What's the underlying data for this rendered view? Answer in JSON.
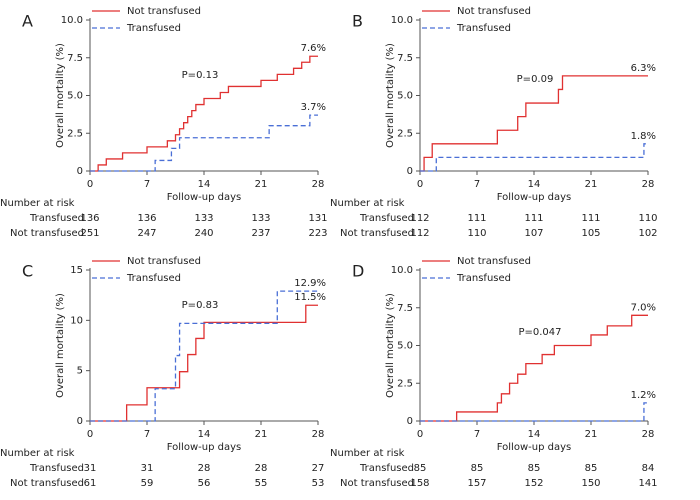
{
  "chart_data": [
    {
      "type": "step",
      "panel": "A",
      "y_label": "Overall mortality (%)",
      "x_label": "Follow-up days",
      "annotation": "P=0.13",
      "xlim": [
        0,
        28
      ],
      "xticks": [
        0,
        7,
        14,
        21,
        28
      ],
      "ylim": [
        0,
        10
      ],
      "yticks": [
        0,
        2.5,
        {
          "value": 5,
          "label": "5.0"
        },
        7.5,
        {
          "value": 10,
          "label": "10.0"
        }
      ],
      "series": [
        {
          "name": "Not transfused",
          "color": "#e03131",
          "dashed": false,
          "x": [
            0,
            1,
            2,
            4,
            7,
            9.5,
            10.5,
            11,
            11.5,
            12,
            12.5,
            13,
            14,
            16,
            17,
            21,
            23,
            25,
            26,
            27,
            28
          ],
          "values": [
            0,
            0.4,
            0.8,
            1.2,
            1.6,
            2.0,
            2.4,
            2.8,
            3.2,
            3.6,
            4.0,
            4.4,
            4.8,
            5.2,
            5.6,
            6.0,
            6.4,
            6.8,
            7.2,
            7.6,
            7.6
          ],
          "value_labels": [
            null,
            null,
            null,
            null,
            null,
            null,
            null,
            null,
            null,
            null,
            null,
            null,
            null,
            null,
            null,
            null,
            null,
            null,
            null,
            null,
            "7.6%"
          ]
        },
        {
          "name": "Transfused",
          "color": "#4a6fd6",
          "dashed": true,
          "x": [
            0,
            8,
            10,
            11,
            22,
            27,
            28
          ],
          "values": [
            0,
            0.7,
            1.5,
            2.2,
            3.0,
            3.7,
            3.7
          ],
          "value_labels": [
            null,
            null,
            null,
            null,
            null,
            null,
            "3.7%"
          ]
        }
      ],
      "risk_table": {
        "title": "Number at risk",
        "rows": [
          {
            "name": "Transfused",
            "values": [
              136,
              136,
              133,
              133,
              131
            ]
          },
          {
            "name": "Not transfused",
            "values": [
              251,
              247,
              240,
              237,
              223
            ]
          }
        ]
      }
    },
    {
      "type": "step",
      "panel": "B",
      "y_label": "Overall mortality (%)",
      "x_label": "Follow-up days",
      "annotation": "P=0.09",
      "xlim": [
        0,
        28
      ],
      "xticks": [
        0,
        7,
        14,
        21,
        28
      ],
      "ylim": [
        0,
        10
      ],
      "yticks": [
        0,
        2.5,
        {
          "value": 5,
          "label": "5.0"
        },
        7.5,
        {
          "value": 10,
          "label": "10.0"
        }
      ],
      "series": [
        {
          "name": "Not transfused",
          "color": "#e03131",
          "dashed": false,
          "x": [
            0,
            0.5,
            1.5,
            9.5,
            12,
            13,
            17,
            17.5,
            28
          ],
          "values": [
            0,
            0.9,
            1.8,
            2.7,
            3.6,
            4.5,
            5.4,
            6.3,
            6.3
          ],
          "value_labels": [
            null,
            null,
            null,
            null,
            null,
            null,
            null,
            null,
            "6.3%"
          ]
        },
        {
          "name": "Transfused",
          "color": "#4a6fd6",
          "dashed": true,
          "x": [
            0,
            2,
            27.5,
            28
          ],
          "values": [
            0,
            0.9,
            1.8,
            1.8
          ],
          "value_labels": [
            null,
            null,
            null,
            "1.8%"
          ]
        }
      ],
      "risk_table": {
        "title": "Number at risk",
        "rows": [
          {
            "name": "Transfused",
            "values": [
              112,
              111,
              111,
              111,
              110
            ]
          },
          {
            "name": "Not transfused",
            "values": [
              112,
              110,
              107,
              105,
              102
            ]
          }
        ]
      }
    },
    {
      "type": "step",
      "panel": "C",
      "y_label": "Overall mortality (%)",
      "x_label": "Follow-up days",
      "annotation": "P=0.83",
      "xlim": [
        0,
        28
      ],
      "xticks": [
        0,
        7,
        14,
        21,
        28
      ],
      "ylim": [
        0,
        15
      ],
      "yticks": [
        0,
        5,
        10,
        15
      ],
      "series": [
        {
          "name": "Not transfused",
          "color": "#e03131",
          "dashed": false,
          "x": [
            0,
            4.5,
            7,
            11,
            12,
            13,
            14,
            26.5,
            28
          ],
          "values": [
            0,
            1.6,
            3.3,
            4.9,
            6.6,
            8.2,
            9.8,
            11.5,
            11.5
          ],
          "value_labels": [
            null,
            null,
            null,
            null,
            null,
            null,
            null,
            null,
            "11.5%"
          ]
        },
        {
          "name": "Transfused",
          "color": "#4a6fd6",
          "dashed": true,
          "x": [
            0,
            8,
            10.5,
            11,
            23,
            28
          ],
          "values": [
            0,
            3.2,
            6.5,
            9.7,
            12.9,
            12.9
          ],
          "value_labels": [
            null,
            null,
            null,
            null,
            null,
            "12.9%"
          ]
        }
      ],
      "risk_table": {
        "title": "Number at risk",
        "rows": [
          {
            "name": "Transfused",
            "values": [
              31,
              31,
              28,
              28,
              27
            ]
          },
          {
            "name": "Not transfused",
            "values": [
              61,
              59,
              56,
              55,
              53
            ]
          }
        ]
      }
    },
    {
      "type": "step",
      "panel": "D",
      "y_label": "Overall mortality (%)",
      "x_label": "Follow-up days",
      "annotation": "P=0.047",
      "xlim": [
        0,
        28
      ],
      "xticks": [
        0,
        7,
        14,
        21,
        28
      ],
      "ylim": [
        0,
        10
      ],
      "yticks": [
        0,
        2.5,
        {
          "value": 5,
          "label": "5.0"
        },
        7.5,
        {
          "value": 10,
          "label": "10.0"
        }
      ],
      "series": [
        {
          "name": "Not transfused",
          "color": "#e03131",
          "dashed": false,
          "x": [
            0,
            4.5,
            9.5,
            10,
            11,
            12,
            13,
            15,
            16.5,
            21,
            23,
            26,
            28
          ],
          "values": [
            0,
            0.6,
            1.2,
            1.8,
            2.5,
            3.1,
            3.8,
            4.4,
            5.0,
            5.7,
            6.3,
            7.0,
            7.0
          ],
          "value_labels": [
            null,
            null,
            null,
            null,
            null,
            null,
            null,
            null,
            null,
            null,
            null,
            null,
            "7.0%"
          ]
        },
        {
          "name": "Transfused",
          "color": "#4a6fd6",
          "dashed": true,
          "x": [
            0,
            27.5,
            28
          ],
          "values": [
            0,
            1.2,
            1.2
          ],
          "value_labels": [
            null,
            null,
            "1.2%"
          ]
        }
      ],
      "risk_table": {
        "title": "Number at risk",
        "rows": [
          {
            "name": "Transfused",
            "values": [
              85,
              85,
              85,
              85,
              84
            ]
          },
          {
            "name": "Not transfused",
            "values": [
              158,
              157,
              152,
              150,
              141
            ]
          }
        ]
      }
    }
  ]
}
